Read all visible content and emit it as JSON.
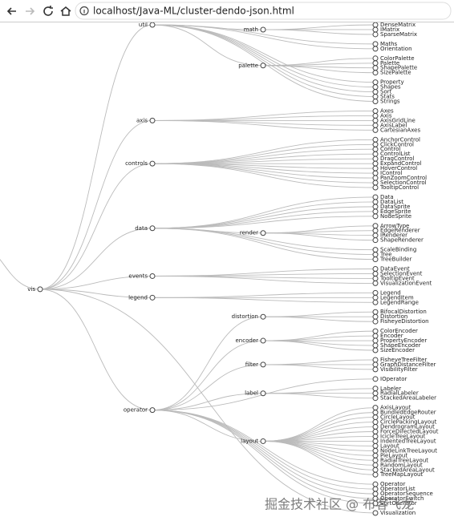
{
  "browser": {
    "url": "localhost/Java-ML/cluster-dendo-json.html"
  },
  "watermark": "掘金技术社区 @ 布客飞龙",
  "tree": {
    "name": "vis",
    "children": [
      {
        "name": "util",
        "children": [
          {
            "name": "math",
            "children": [
              {
                "name": "DenseMatrix"
              },
              {
                "name": "IMatrix"
              },
              {
                "name": "SparseMatrix"
              }
            ]
          },
          {
            "name": "Maths"
          },
          {
            "name": "Orientation"
          },
          {
            "name": "palette",
            "children": [
              {
                "name": "ColorPalette"
              },
              {
                "name": "Palette"
              },
              {
                "name": "ShapePalette"
              },
              {
                "name": "SizePalette"
              }
            ]
          },
          {
            "name": "Property"
          },
          {
            "name": "Shapes"
          },
          {
            "name": "Sort"
          },
          {
            "name": "Stats"
          },
          {
            "name": "Strings"
          }
        ]
      },
      {
        "name": "axis",
        "children": [
          {
            "name": "Axes"
          },
          {
            "name": "Axis"
          },
          {
            "name": "AxisGridLine"
          },
          {
            "name": "AxisLabel"
          },
          {
            "name": "CartesianAxes"
          }
        ]
      },
      {
        "name": "controls",
        "children": [
          {
            "name": "AnchorControl"
          },
          {
            "name": "ClickControl"
          },
          {
            "name": "Control"
          },
          {
            "name": "ControlList"
          },
          {
            "name": "DragControl"
          },
          {
            "name": "ExpandControl"
          },
          {
            "name": "HoverControl"
          },
          {
            "name": "IControl"
          },
          {
            "name": "PanZoomControl"
          },
          {
            "name": "SelectionControl"
          },
          {
            "name": "TooltipControl"
          }
        ]
      },
      {
        "name": "data",
        "children": [
          {
            "name": "Data"
          },
          {
            "name": "DataList"
          },
          {
            "name": "DataSprite"
          },
          {
            "name": "EdgeSprite"
          },
          {
            "name": "NodeSprite"
          },
          {
            "name": "render",
            "children": [
              {
                "name": "ArrowType"
              },
              {
                "name": "EdgeRenderer"
              },
              {
                "name": "IRenderer"
              },
              {
                "name": "ShapeRenderer"
              }
            ]
          },
          {
            "name": "ScaleBinding"
          },
          {
            "name": "Tree"
          },
          {
            "name": "TreeBuilder"
          }
        ]
      },
      {
        "name": "events",
        "children": [
          {
            "name": "DataEvent"
          },
          {
            "name": "SelectionEvent"
          },
          {
            "name": "TooltipEvent"
          },
          {
            "name": "VisualizationEvent"
          }
        ]
      },
      {
        "name": "legend",
        "children": [
          {
            "name": "Legend"
          },
          {
            "name": "LegendItem"
          },
          {
            "name": "LegendRange"
          }
        ]
      },
      {
        "name": "operator",
        "children": [
          {
            "name": "distortion",
            "children": [
              {
                "name": "BifocalDistortion"
              },
              {
                "name": "Distortion"
              },
              {
                "name": "FisheyeDistortion"
              }
            ]
          },
          {
            "name": "encoder",
            "children": [
              {
                "name": "ColorEncoder"
              },
              {
                "name": "Encoder"
              },
              {
                "name": "PropertyEncoder"
              },
              {
                "name": "ShapeEncoder"
              },
              {
                "name": "SizeEncoder"
              }
            ]
          },
          {
            "name": "filter",
            "children": [
              {
                "name": "FisheyeTreeFilter"
              },
              {
                "name": "GraphDistanceFilter"
              },
              {
                "name": "VisibilityFilter"
              }
            ]
          },
          {
            "name": "IOperator"
          },
          {
            "name": "label",
            "children": [
              {
                "name": "Labeler"
              },
              {
                "name": "RadialLabeler"
              },
              {
                "name": "StackedAreaLabeler"
              }
            ]
          },
          {
            "name": "layout",
            "children": [
              {
                "name": "AxisLayout"
              },
              {
                "name": "BundledEdgeRouter"
              },
              {
                "name": "CircleLayout"
              },
              {
                "name": "CirclePackingLayout"
              },
              {
                "name": "DendrogramLayout"
              },
              {
                "name": "ForceDirectedLayout"
              },
              {
                "name": "IcicleTreeLayout"
              },
              {
                "name": "IndentedTreeLayout"
              },
              {
                "name": "Layout"
              },
              {
                "name": "NodeLinkTreeLayout"
              },
              {
                "name": "PieLayout"
              },
              {
                "name": "RadialTreeLayout"
              },
              {
                "name": "RandomLayout"
              },
              {
                "name": "StackedAreaLayout"
              },
              {
                "name": "TreeMapLayout"
              }
            ]
          },
          {
            "name": "Operator"
          },
          {
            "name": "OperatorList"
          },
          {
            "name": "OperatorSequence"
          },
          {
            "name": "OperatorSwitch"
          },
          {
            "name": "SortOperator"
          }
        ]
      },
      {
        "name": "Visualization"
      }
    ]
  }
}
